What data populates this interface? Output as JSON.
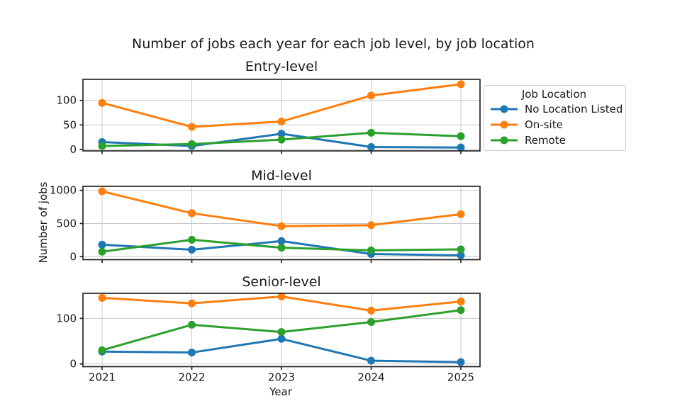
{
  "figure": {
    "suptitle": "Number of jobs each year for each job level, by job location",
    "xlabel": "Year",
    "ylabel": "Number of jobs"
  },
  "legend": {
    "title": "Job Location",
    "position": "upper right, outside axes",
    "entries": [
      {
        "label": "No Location Listed",
        "color": "#1f77b4"
      },
      {
        "label": "On-site",
        "color": "#ff7f0e"
      },
      {
        "label": "Remote",
        "color": "#2ca02c"
      }
    ]
  },
  "chart_data": [
    {
      "type": "line",
      "title": "Entry-level",
      "x": [
        2021,
        2022,
        2023,
        2024,
        2025
      ],
      "series": [
        {
          "name": "No Location Listed",
          "color": "#1f77b4",
          "values": [
            15,
            7,
            32,
            5,
            4
          ]
        },
        {
          "name": "On-site",
          "color": "#ff7f0e",
          "values": [
            95,
            46,
            57,
            110,
            133
          ]
        },
        {
          "name": "Remote",
          "color": "#2ca02c",
          "values": [
            7,
            11,
            20,
            34,
            27
          ]
        }
      ],
      "yticks": [
        0,
        50,
        100
      ],
      "ylim": [
        -3,
        143
      ],
      "grid": true
    },
    {
      "type": "line",
      "title": "Mid-level",
      "x": [
        2021,
        2022,
        2023,
        2024,
        2025
      ],
      "series": [
        {
          "name": "No Location Listed",
          "color": "#1f77b4",
          "values": [
            180,
            105,
            235,
            40,
            20
          ]
        },
        {
          "name": "On-site",
          "color": "#ff7f0e",
          "values": [
            985,
            655,
            460,
            475,
            640
          ]
        },
        {
          "name": "Remote",
          "color": "#2ca02c",
          "values": [
            75,
            255,
            135,
            95,
            110
          ]
        }
      ],
      "yticks": [
        0,
        500,
        1000
      ],
      "ylim": [
        -45,
        1060
      ],
      "grid": true
    },
    {
      "type": "line",
      "title": "Senior-level",
      "x": [
        2021,
        2022,
        2023,
        2024,
        2025
      ],
      "series": [
        {
          "name": "No Location Listed",
          "color": "#1f77b4",
          "values": [
            27,
            25,
            55,
            7,
            4
          ]
        },
        {
          "name": "On-site",
          "color": "#ff7f0e",
          "values": [
            145,
            133,
            148,
            117,
            137
          ]
        },
        {
          "name": "Remote",
          "color": "#2ca02c",
          "values": [
            30,
            86,
            70,
            92,
            118
          ]
        }
      ],
      "yticks": [
        0,
        100
      ],
      "ylim": [
        -6,
        155
      ],
      "grid": true
    }
  ]
}
